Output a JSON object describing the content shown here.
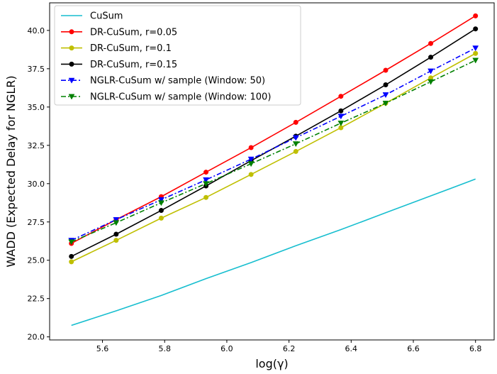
{
  "chart_data": {
    "type": "line",
    "xlabel": "log(γ)",
    "ylabel": "WADD (Expected Delay for NGLR)",
    "xlim": [
      5.43,
      6.86
    ],
    "ylim": [
      19.8,
      41.8
    ],
    "xticks": [
      5.6,
      5.8,
      6.0,
      6.2,
      6.4,
      6.6,
      6.8
    ],
    "xtick_labels": [
      "5.6",
      "5.8",
      "6.0",
      "6.2",
      "6.4",
      "6.6",
      "6.8"
    ],
    "yticks": [
      20.0,
      22.5,
      25.0,
      27.5,
      30.0,
      32.5,
      35.0,
      37.5,
      40.0
    ],
    "ytick_labels": [
      "20.0",
      "22.5",
      "25.0",
      "27.5",
      "30.0",
      "32.5",
      "35.0",
      "37.5",
      "40.0"
    ],
    "grid": false,
    "legend_position": "top-left",
    "x": [
      5.5,
      5.644,
      5.789,
      5.933,
      6.078,
      6.222,
      6.367,
      6.511,
      6.656,
      6.8
    ],
    "series": [
      {
        "name": "CuSum",
        "color": "#17becf",
        "dash": "solid",
        "marker": "none",
        "values": [
          20.75,
          21.7,
          22.7,
          23.8,
          24.85,
          25.95,
          27.0,
          28.1,
          29.2,
          30.3
        ]
      },
      {
        "name": "DR-CuSum, r=0.05",
        "color": "#ff0000",
        "dash": "solid",
        "marker": "circle",
        "values": [
          26.1,
          27.65,
          29.15,
          30.75,
          32.35,
          34.0,
          35.7,
          37.4,
          39.15,
          40.95
        ]
      },
      {
        "name": "DR-CuSum, r=0.1",
        "color": "#bfbf00",
        "dash": "solid",
        "marker": "circle",
        "values": [
          24.9,
          26.3,
          27.75,
          29.1,
          30.6,
          32.1,
          33.65,
          35.25,
          36.9,
          38.5
        ]
      },
      {
        "name": "DR-CuSum, r=0.15",
        "color": "#000000",
        "dash": "solid",
        "marker": "circle",
        "values": [
          25.25,
          26.7,
          28.25,
          29.85,
          31.5,
          33.1,
          34.75,
          36.45,
          38.25,
          40.1
        ]
      },
      {
        "name": "NGLR-CuSum w/ sample (Window: 50)",
        "color": "#0000ff",
        "dash": "dashdot",
        "marker": "triangle-down",
        "values": [
          26.3,
          27.65,
          28.95,
          30.25,
          31.6,
          33.0,
          34.4,
          35.8,
          37.35,
          38.85
        ]
      },
      {
        "name": "NGLR-CuSum w/ sample (Window: 100)",
        "color": "#008000",
        "dash": "dashdot",
        "marker": "triangle-down",
        "values": [
          26.2,
          27.45,
          28.75,
          30.0,
          31.3,
          32.6,
          33.95,
          35.25,
          36.65,
          38.05
        ]
      }
    ]
  }
}
